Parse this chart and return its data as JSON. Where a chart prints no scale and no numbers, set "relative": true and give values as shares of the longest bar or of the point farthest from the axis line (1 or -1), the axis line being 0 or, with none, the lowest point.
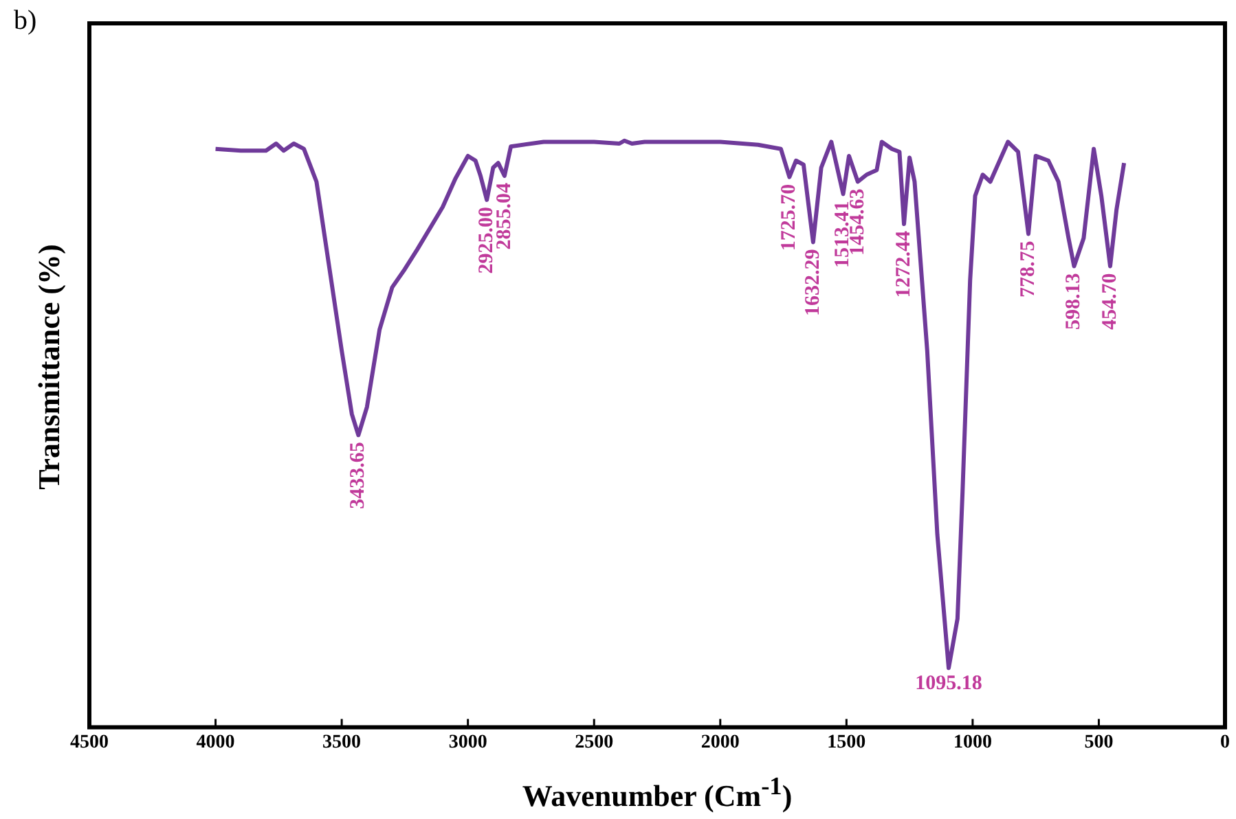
{
  "chart_data": {
    "type": "line",
    "title": "b)",
    "xlabel": "Wavenumber (Cm$^{-1}$)",
    "ylabel": "Transmittance (%)",
    "relative": true,
    "color": "#6f3a9a",
    "marker": "none",
    "grid": false,
    "legend": false,
    "xlim": [
      4500,
      0
    ],
    "xticks": [
      4500,
      4000,
      3500,
      3000,
      2500,
      2000,
      1500,
      1000,
      500,
      0
    ],
    "x": [
      4000,
      3900,
      3800,
      3760,
      3730,
      3690,
      3650,
      3600,
      3550,
      3500,
      3460,
      3434,
      3400,
      3350,
      3300,
      3250,
      3200,
      3150,
      3100,
      3050,
      3000,
      2970,
      2950,
      2925,
      2900,
      2880,
      2855,
      2830,
      2700,
      2500,
      2400,
      2380,
      2350,
      2300,
      2000,
      1850,
      1760,
      1726,
      1700,
      1670,
      1632,
      1600,
      1560,
      1513,
      1490,
      1455,
      1420,
      1380,
      1360,
      1320,
      1290,
      1272,
      1250,
      1230,
      1180,
      1140,
      1095,
      1060,
      1040,
      1010,
      990,
      960,
      930,
      860,
      820,
      779,
      750,
      700,
      660,
      620,
      598,
      560,
      520,
      490,
      455,
      430,
      400
    ],
    "values": [
      0.986,
      0.983,
      0.983,
      0.995,
      0.983,
      0.995,
      0.986,
      0.93,
      0.786,
      0.642,
      0.534,
      0.498,
      0.546,
      0.678,
      0.75,
      0.781,
      0.815,
      0.851,
      0.887,
      0.935,
      0.974,
      0.966,
      0.94,
      0.899,
      0.954,
      0.962,
      0.94,
      0.99,
      0.998,
      0.998,
      0.995,
      1.0,
      0.995,
      0.998,
      0.998,
      0.993,
      0.986,
      0.938,
      0.966,
      0.959,
      0.827,
      0.954,
      0.998,
      0.909,
      0.974,
      0.93,
      0.942,
      0.95,
      0.998,
      0.986,
      0.981,
      0.858,
      0.971,
      0.93,
      0.642,
      0.329,
      0.101,
      0.185,
      0.401,
      0.762,
      0.906,
      0.942,
      0.93,
      0.998,
      0.981,
      0.841,
      0.974,
      0.966,
      0.93,
      0.834,
      0.786,
      0.834,
      0.986,
      0.906,
      0.786,
      0.882,
      0.962
    ],
    "annotations": [
      {
        "text": "3433.65",
        "x": 3434,
        "y": 0.498
      },
      {
        "text": "2925.00",
        "x": 2925,
        "y": 0.899
      },
      {
        "text": "2855.04",
        "x": 2855,
        "y": 0.94
      },
      {
        "text": "1725.70",
        "x": 1726,
        "y": 0.938
      },
      {
        "text": "1632.29",
        "x": 1632,
        "y": 0.827
      },
      {
        "text": "1513.41",
        "x": 1513,
        "y": 0.909
      },
      {
        "text": "1454.63",
        "x": 1455,
        "y": 0.93
      },
      {
        "text": "1272.44",
        "x": 1272,
        "y": 0.858
      },
      {
        "text": "1095.18",
        "x": 1095,
        "y": 0.101
      },
      {
        "text": "778.75",
        "x": 779,
        "y": 0.841
      },
      {
        "text": "598.13",
        "x": 598,
        "y": 0.786
      },
      {
        "text": "454.70",
        "x": 455,
        "y": 0.786
      }
    ]
  }
}
